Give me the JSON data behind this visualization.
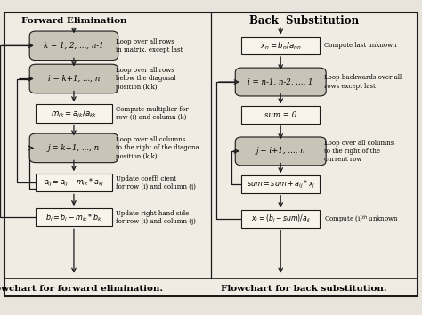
{
  "bg_color": "#e8e4dc",
  "inner_bg": "#f0ece4",
  "border_color": "#1a1a1a",
  "box_fill_white": "#f8f4ec",
  "rounded_fill": "#c8c4b8",
  "title_left": "Forward Elimination",
  "title_right": "Back  Substitution",
  "footer_left": "Flowchart for forward elimination.",
  "footer_right": "Flowchart for back substitution."
}
